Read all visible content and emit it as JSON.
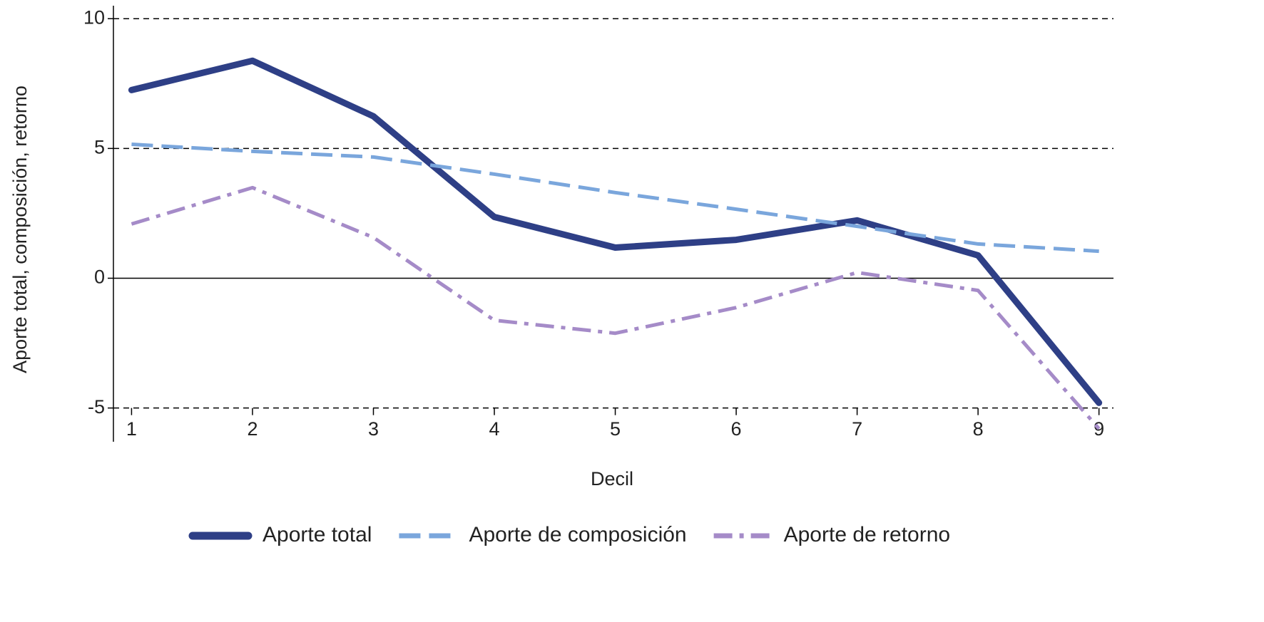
{
  "chart_data": {
    "type": "line",
    "x_label": "Decil",
    "y_label": "Aporte total, composición, retorno",
    "x": [
      1,
      2,
      3,
      4,
      5,
      6,
      7,
      8,
      9
    ],
    "xlim": [
      0.85,
      9.12
    ],
    "xticks": [
      1,
      2,
      3,
      4,
      5,
      6,
      7,
      8,
      9
    ],
    "ylim": [
      -6.3,
      10.5
    ],
    "yticks": [
      -5,
      0,
      5,
      10
    ],
    "grid": true,
    "legend": "bottom",
    "series": [
      {
        "name": "Aporte total",
        "color": "#2e3f86",
        "style": "solid",
        "values": [
          7.25,
          8.38,
          6.24,
          2.36,
          1.18,
          1.48,
          2.23,
          0.88,
          -4.8
        ]
      },
      {
        "name": "Aporte de composición",
        "color": "#7aa6dc",
        "style": "dashed",
        "values": [
          5.16,
          4.89,
          4.67,
          4.01,
          3.3,
          2.66,
          2.0,
          1.32,
          1.04
        ]
      },
      {
        "name": "Aporte de retorno",
        "color": "#a58bc8",
        "style": "dashdot",
        "values": [
          2.09,
          3.49,
          1.57,
          -1.62,
          -2.12,
          -1.13,
          0.22,
          -0.47,
          -5.8
        ]
      }
    ]
  }
}
